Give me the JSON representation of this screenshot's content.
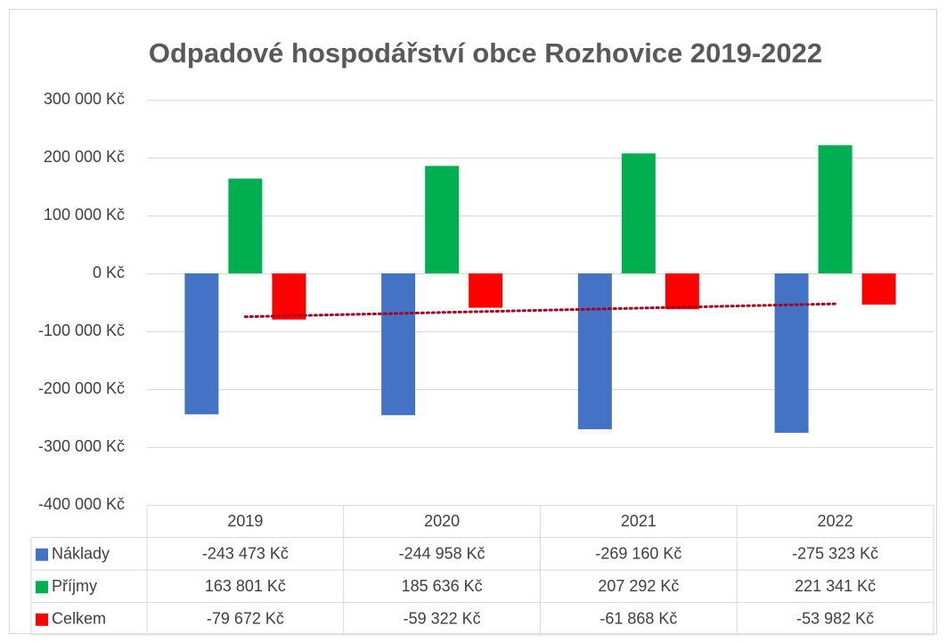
{
  "chart_data": {
    "type": "bar",
    "title": "Odpadové hospodářství obce Rozhovice 2019-2022",
    "categories": [
      "2019",
      "2020",
      "2021",
      "2022"
    ],
    "series": [
      {
        "name": "Náklady",
        "color": "#4472c4",
        "values": [
          -243473,
          -244958,
          -269160,
          -275323
        ],
        "value_labels": [
          "-243 473 Kč",
          "-244 958 Kč",
          "-269 160 Kč",
          "-275 323 Kč"
        ]
      },
      {
        "name": "Příjmy",
        "color": "#00b050",
        "values": [
          163801,
          185636,
          207292,
          221341
        ],
        "value_labels": [
          "163 801 Kč",
          "185 636 Kč",
          "207 292 Kč",
          "221 341 Kč"
        ]
      },
      {
        "name": "Celkem",
        "color": "#ff0000",
        "values": [
          -79672,
          -59322,
          -61868,
          -53982
        ],
        "value_labels": [
          "-79 672 Kč",
          "-59 322 Kč",
          "-61 868 Kč",
          "-53 982 Kč"
        ],
        "trendline": {
          "type": "linear",
          "color": "#a50021"
        }
      }
    ],
    "ylim": [
      -400000,
      300000
    ],
    "yticks": [
      {
        "value": -400000,
        "label": "-400 000 Kč"
      },
      {
        "value": -300000,
        "label": "-300 000 Kč"
      },
      {
        "value": -200000,
        "label": "-200 000 Kč"
      },
      {
        "value": -100000,
        "label": "-100 000 Kč"
      },
      {
        "value": 0,
        "label": "0 Kč"
      },
      {
        "value": 100000,
        "label": "100 000 Kč"
      },
      {
        "value": 200000,
        "label": "200 000 Kč"
      },
      {
        "value": 300000,
        "label": "300 000 Kč"
      }
    ],
    "grid": true,
    "data_table": true
  }
}
